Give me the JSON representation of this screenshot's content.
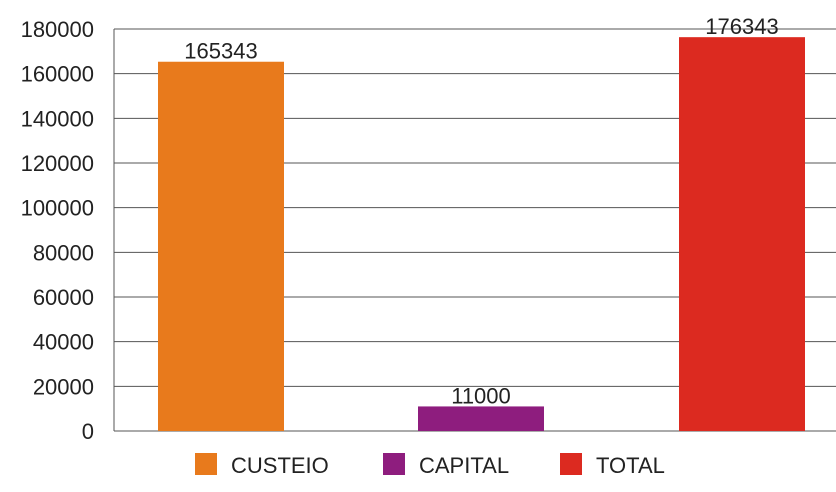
{
  "chart_data": {
    "type": "bar",
    "categories": [
      "CUSTEIO",
      "CAPITAL",
      "TOTAL"
    ],
    "values": [
      165343,
      11000,
      176343
    ],
    "data_labels": [
      "165343",
      "11000",
      "176343"
    ],
    "colors": [
      "#E87A1C",
      "#8E1D7E",
      "#DC2A20"
    ],
    "ylim": [
      0,
      180000
    ],
    "yticks": [
      0,
      20000,
      40000,
      60000,
      80000,
      100000,
      120000,
      140000,
      160000,
      180000
    ],
    "ytick_labels": [
      "0",
      "20000",
      "40000",
      "60000",
      "80000",
      "100000",
      "120000",
      "140000",
      "160000",
      "180000"
    ],
    "grid": true,
    "legend": {
      "position": "bottom",
      "entries": [
        "CUSTEIO",
        "CAPITAL",
        "TOTAL"
      ]
    },
    "gridline_color": "#555555"
  }
}
